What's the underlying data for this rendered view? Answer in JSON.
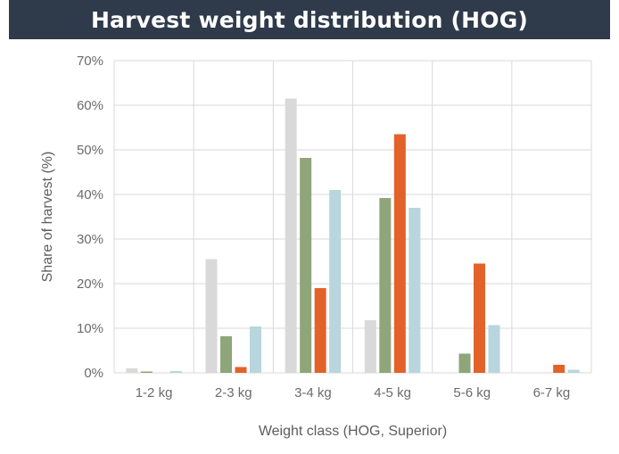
{
  "header": {
    "title": "Harvest weight distribution (HOG)"
  },
  "chart_data": {
    "type": "bar",
    "title": "Harvest weight distribution (HOG)",
    "xlabel": "Weight class (HOG, Superior)",
    "ylabel": "Share of harvest (%)",
    "categories": [
      "1-2 kg",
      "2-3 kg",
      "3-4 kg",
      "4-5 kg",
      "5-6 kg",
      "6-7 kg"
    ],
    "ylim": [
      0,
      70
    ],
    "yticks": [
      "0%",
      "10%",
      "20%",
      "30%",
      "40%",
      "50%",
      "60%",
      "70%"
    ],
    "grid": true,
    "legend": "none",
    "series": [
      {
        "color": "#d9d9d9",
        "values": [
          1.0,
          25.5,
          61.5,
          11.8,
          0,
          0
        ]
      },
      {
        "color": "#8fa57a",
        "values": [
          0.3,
          8.2,
          48.2,
          39.2,
          4.3,
          0
        ]
      },
      {
        "color": "#e2622a",
        "values": [
          0,
          1.3,
          19.0,
          53.5,
          24.5,
          1.8
        ]
      },
      {
        "color": "#b9d5de",
        "values": [
          0.4,
          10.4,
          41.0,
          37.0,
          10.7,
          0.7
        ]
      }
    ]
  }
}
